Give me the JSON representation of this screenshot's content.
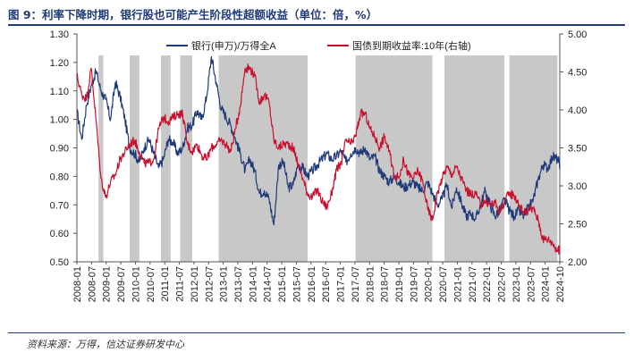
{
  "header": {
    "title": "图 9：利率下降时期，银行股也可能产生阶段性超额收益（单位：倍，%）"
  },
  "footer": {
    "source": "资料来源：万得，信达证券研发中心"
  },
  "chart_data": {
    "type": "line",
    "title": "",
    "x_tick_labels": [
      "2008-01",
      "2008-07",
      "2009-01",
      "2009-07",
      "2010-01",
      "2010-07",
      "2011-01",
      "2011-07",
      "2012-01",
      "2012-07",
      "2013-01",
      "2013-07",
      "2014-01",
      "2014-07",
      "2015-01",
      "2015-07",
      "2016-01",
      "2016-07",
      "2017-01",
      "2017-07",
      "2018-01",
      "2018-07",
      "2019-01",
      "2019-07",
      "2020-01",
      "2020-07",
      "2021-01",
      "2021-07",
      "2022-01",
      "2022-07",
      "2023-01",
      "2023-07",
      "2024-01",
      "2024-10"
    ],
    "y_left": {
      "min": 0.5,
      "max": 1.3,
      "ticks": [
        "0.50",
        "0.60",
        "0.70",
        "0.80",
        "0.90",
        "1.00",
        "1.10",
        "1.20",
        "1.30"
      ]
    },
    "y_right": {
      "min": 2.0,
      "max": 5.0,
      "ticks": [
        "2.00",
        "2.50",
        "3.00",
        "3.50",
        "4.00",
        "4.50",
        "5.00"
      ]
    },
    "shaded_periods": [
      [
        "2008-10",
        "2008-12"
      ],
      [
        "2009-11",
        "2010-03"
      ],
      [
        "2010-12",
        "2011-04"
      ],
      [
        "2011-08",
        "2012-01"
      ],
      [
        "2012-12",
        "2016-01"
      ],
      [
        "2017-09",
        "2020-05"
      ],
      [
        "2020-10",
        "2022-11"
      ],
      [
        "2023-01",
        "2024-09"
      ]
    ],
    "series": [
      {
        "name": "银行(申万)/万得全A",
        "axis": "left",
        "color": "#1f3a78",
        "points": [
          [
            "2008-01",
            1.03
          ],
          [
            "2008-03",
            0.93
          ],
          [
            "2008-05",
            1.05
          ],
          [
            "2008-07",
            1.12
          ],
          [
            "2008-09",
            1.17
          ],
          [
            "2008-11",
            1.1
          ],
          [
            "2009-01",
            1.07
          ],
          [
            "2009-03",
            1.0
          ],
          [
            "2009-05",
            1.13
          ],
          [
            "2009-07",
            1.08
          ],
          [
            "2009-09",
            1.0
          ],
          [
            "2009-11",
            0.9
          ],
          [
            "2010-01",
            0.88
          ],
          [
            "2010-03",
            0.85
          ],
          [
            "2010-05",
            0.9
          ],
          [
            "2010-07",
            0.93
          ],
          [
            "2010-09",
            0.88
          ],
          [
            "2010-11",
            0.83
          ],
          [
            "2011-01",
            0.86
          ],
          [
            "2011-03",
            0.93
          ],
          [
            "2011-05",
            0.92
          ],
          [
            "2011-07",
            0.88
          ],
          [
            "2011-09",
            0.9
          ],
          [
            "2011-11",
            0.97
          ],
          [
            "2012-01",
            0.98
          ],
          [
            "2012-03",
            1.03
          ],
          [
            "2012-05",
            1.0
          ],
          [
            "2012-07",
            1.08
          ],
          [
            "2012-09",
            1.22
          ],
          [
            "2012-11",
            1.13
          ],
          [
            "2013-01",
            1.04
          ],
          [
            "2013-03",
            1.01
          ],
          [
            "2013-05",
            0.98
          ],
          [
            "2013-07",
            0.93
          ],
          [
            "2013-09",
            0.88
          ],
          [
            "2013-11",
            0.82
          ],
          [
            "2014-01",
            0.86
          ],
          [
            "2014-03",
            0.82
          ],
          [
            "2014-05",
            0.74
          ],
          [
            "2014-07",
            0.75
          ],
          [
            "2014-09",
            0.72
          ],
          [
            "2014-11",
            0.63
          ],
          [
            "2015-01",
            0.84
          ],
          [
            "2015-03",
            0.85
          ],
          [
            "2015-05",
            0.76
          ],
          [
            "2015-07",
            0.77
          ],
          [
            "2015-09",
            0.84
          ],
          [
            "2015-11",
            0.83
          ],
          [
            "2016-01",
            0.8
          ],
          [
            "2016-03",
            0.82
          ],
          [
            "2016-05",
            0.84
          ],
          [
            "2016-07",
            0.86
          ],
          [
            "2016-09",
            0.88
          ],
          [
            "2016-11",
            0.86
          ],
          [
            "2017-01",
            0.87
          ],
          [
            "2017-03",
            0.89
          ],
          [
            "2017-05",
            0.85
          ],
          [
            "2017-07",
            0.88
          ],
          [
            "2017-09",
            0.9
          ],
          [
            "2017-11",
            0.88
          ],
          [
            "2018-01",
            0.9
          ],
          [
            "2018-03",
            0.86
          ],
          [
            "2018-05",
            0.87
          ],
          [
            "2018-07",
            0.82
          ],
          [
            "2018-09",
            0.8
          ],
          [
            "2018-11",
            0.78
          ],
          [
            "2019-01",
            0.8
          ],
          [
            "2019-03",
            0.78
          ],
          [
            "2019-05",
            0.76
          ],
          [
            "2019-07",
            0.77
          ],
          [
            "2019-09",
            0.78
          ],
          [
            "2019-11",
            0.76
          ],
          [
            "2020-01",
            0.75
          ],
          [
            "2020-03",
            0.78
          ],
          [
            "2020-05",
            0.74
          ],
          [
            "2020-07",
            0.7
          ],
          [
            "2020-09",
            0.72
          ],
          [
            "2020-11",
            0.77
          ],
          [
            "2021-01",
            0.69
          ],
          [
            "2021-03",
            0.76
          ],
          [
            "2021-05",
            0.71
          ],
          [
            "2021-07",
            0.66
          ],
          [
            "2021-09",
            0.67
          ],
          [
            "2021-11",
            0.65
          ],
          [
            "2022-01",
            0.7
          ],
          [
            "2022-03",
            0.75
          ],
          [
            "2022-05",
            0.7
          ],
          [
            "2022-07",
            0.66
          ],
          [
            "2022-09",
            0.68
          ],
          [
            "2022-11",
            0.72
          ],
          [
            "2023-01",
            0.68
          ],
          [
            "2023-03",
            0.66
          ],
          [
            "2023-05",
            0.68
          ],
          [
            "2023-07",
            0.66
          ],
          [
            "2023-09",
            0.69
          ],
          [
            "2023-11",
            0.72
          ],
          [
            "2024-01",
            0.79
          ],
          [
            "2024-03",
            0.84
          ],
          [
            "2024-05",
            0.83
          ],
          [
            "2024-07",
            0.87
          ],
          [
            "2024-09",
            0.86
          ],
          [
            "2024-10",
            0.84
          ]
        ]
      },
      {
        "name": "国债到期收益率:10年(右轴)",
        "axis": "right",
        "color": "#c8102e",
        "points": [
          [
            "2008-01",
            4.45
          ],
          [
            "2008-03",
            4.2
          ],
          [
            "2008-05",
            4.15
          ],
          [
            "2008-07",
            4.55
          ],
          [
            "2008-09",
            3.85
          ],
          [
            "2008-11",
            3.1
          ],
          [
            "2009-01",
            2.85
          ],
          [
            "2009-03",
            3.05
          ],
          [
            "2009-05",
            3.15
          ],
          [
            "2009-07",
            3.35
          ],
          [
            "2009-09",
            3.45
          ],
          [
            "2009-11",
            3.55
          ],
          [
            "2010-01",
            3.6
          ],
          [
            "2010-03",
            3.45
          ],
          [
            "2010-05",
            3.3
          ],
          [
            "2010-07",
            3.3
          ],
          [
            "2010-09",
            3.35
          ],
          [
            "2010-11",
            3.75
          ],
          [
            "2011-01",
            3.9
          ],
          [
            "2011-03",
            3.85
          ],
          [
            "2011-05",
            3.9
          ],
          [
            "2011-07",
            3.95
          ],
          [
            "2011-09",
            3.95
          ],
          [
            "2011-11",
            3.55
          ],
          [
            "2012-01",
            3.45
          ],
          [
            "2012-03",
            3.55
          ],
          [
            "2012-05",
            3.4
          ],
          [
            "2012-07",
            3.35
          ],
          [
            "2012-09",
            3.5
          ],
          [
            "2012-11",
            3.55
          ],
          [
            "2013-01",
            3.6
          ],
          [
            "2013-03",
            3.55
          ],
          [
            "2013-05",
            3.45
          ],
          [
            "2013-07",
            3.75
          ],
          [
            "2013-09",
            4.05
          ],
          [
            "2013-11",
            4.55
          ],
          [
            "2014-01",
            4.55
          ],
          [
            "2014-03",
            4.45
          ],
          [
            "2014-05",
            4.1
          ],
          [
            "2014-07",
            4.2
          ],
          [
            "2014-09",
            4.1
          ],
          [
            "2014-11",
            3.6
          ],
          [
            "2015-01",
            3.5
          ],
          [
            "2015-03",
            3.55
          ],
          [
            "2015-05",
            3.55
          ],
          [
            "2015-07",
            3.5
          ],
          [
            "2015-09",
            3.3
          ],
          [
            "2015-11",
            3.1
          ],
          [
            "2016-01",
            2.9
          ],
          [
            "2016-03",
            2.85
          ],
          [
            "2016-05",
            2.95
          ],
          [
            "2016-07",
            2.8
          ],
          [
            "2016-09",
            2.72
          ],
          [
            "2016-11",
            2.9
          ],
          [
            "2017-01",
            3.2
          ],
          [
            "2017-03",
            3.3
          ],
          [
            "2017-05",
            3.6
          ],
          [
            "2017-07",
            3.55
          ],
          [
            "2017-09",
            3.65
          ],
          [
            "2017-11",
            3.95
          ],
          [
            "2018-01",
            3.95
          ],
          [
            "2018-03",
            3.75
          ],
          [
            "2018-05",
            3.65
          ],
          [
            "2018-07",
            3.5
          ],
          [
            "2018-09",
            3.65
          ],
          [
            "2018-11",
            3.45
          ],
          [
            "2019-01",
            3.15
          ],
          [
            "2019-03",
            3.1
          ],
          [
            "2019-05",
            3.35
          ],
          [
            "2019-07",
            3.15
          ],
          [
            "2019-09",
            3.1
          ],
          [
            "2019-11",
            3.2
          ],
          [
            "2020-01",
            3.05
          ],
          [
            "2020-03",
            2.7
          ],
          [
            "2020-05",
            2.55
          ],
          [
            "2020-07",
            2.9
          ],
          [
            "2020-09",
            3.1
          ],
          [
            "2020-11",
            3.25
          ],
          [
            "2021-01",
            3.15
          ],
          [
            "2021-03",
            3.25
          ],
          [
            "2021-05",
            3.1
          ],
          [
            "2021-07",
            2.95
          ],
          [
            "2021-09",
            2.88
          ],
          [
            "2021-11",
            2.9
          ],
          [
            "2022-01",
            2.75
          ],
          [
            "2022-03",
            2.8
          ],
          [
            "2022-05",
            2.75
          ],
          [
            "2022-07",
            2.78
          ],
          [
            "2022-09",
            2.65
          ],
          [
            "2022-11",
            2.8
          ],
          [
            "2023-01",
            2.9
          ],
          [
            "2023-03",
            2.88
          ],
          [
            "2023-05",
            2.75
          ],
          [
            "2023-07",
            2.65
          ],
          [
            "2023-09",
            2.68
          ],
          [
            "2023-11",
            2.7
          ],
          [
            "2024-01",
            2.55
          ],
          [
            "2024-03",
            2.3
          ],
          [
            "2024-05",
            2.3
          ],
          [
            "2024-07",
            2.25
          ],
          [
            "2024-09",
            2.15
          ],
          [
            "2024-10",
            2.15
          ]
        ]
      }
    ],
    "legend": "top-center",
    "grid": false
  }
}
